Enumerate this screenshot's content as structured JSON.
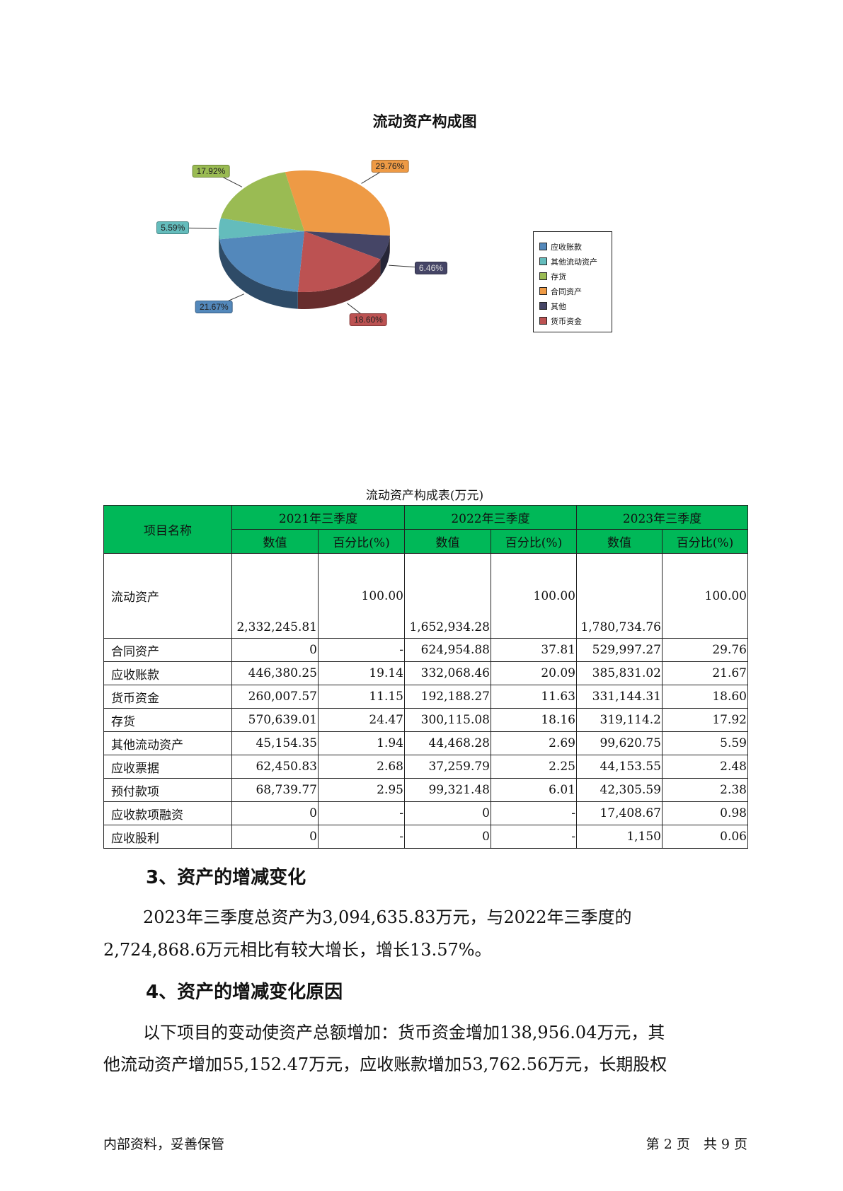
{
  "chart_data": {
    "type": "pie",
    "title": "流动资产构成图",
    "slices": [
      {
        "name": "合同资产",
        "value": 29.76,
        "label": "29.76%",
        "color": "#ee9a45"
      },
      {
        "name": "其他",
        "value": 6.46,
        "label": "6.46%",
        "color": "#454566"
      },
      {
        "name": "货币资金",
        "value": 18.6,
        "label": "18.60%",
        "color": "#bc5252"
      },
      {
        "name": "应收账款",
        "value": 21.67,
        "label": "21.67%",
        "color": "#5388bb"
      },
      {
        "name": "其他流动资产",
        "value": 5.59,
        "label": "5.59%",
        "color": "#64bcbc"
      },
      {
        "name": "存货",
        "value": 17.92,
        "label": "17.92%",
        "color": "#9abb53"
      }
    ],
    "legend": [
      {
        "name": "应收账款",
        "color": "#5388bb"
      },
      {
        "name": "其他流动资产",
        "color": "#64bcbc"
      },
      {
        "name": "存货",
        "color": "#9abb53"
      },
      {
        "name": "合同资产",
        "color": "#ee9a45"
      },
      {
        "name": "其他",
        "color": "#454566"
      },
      {
        "name": "货币资金",
        "color": "#bc5252"
      }
    ],
    "legend_position": "right"
  },
  "table": {
    "caption": "流动资产构成表(万元)",
    "header_name": "项目名称",
    "periods": [
      "2021年三季度",
      "2022年三季度",
      "2023年三季度"
    ],
    "sub": [
      "数值",
      "百分比(%)"
    ],
    "header_color": "#00b858",
    "rows": [
      [
        "流动资产",
        "2,332,245.81",
        "100.00",
        "1,652,934.28",
        "100.00",
        "1,780,734.76",
        "100.00"
      ],
      [
        "合同资产",
        "0",
        "-",
        "624,954.88",
        "37.81",
        "529,997.27",
        "29.76"
      ],
      [
        "应收账款",
        "446,380.25",
        "19.14",
        "332,068.46",
        "20.09",
        "385,831.02",
        "21.67"
      ],
      [
        "货币资金",
        "260,007.57",
        "11.15",
        "192,188.27",
        "11.63",
        "331,144.31",
        "18.60"
      ],
      [
        "存货",
        "570,639.01",
        "24.47",
        "300,115.08",
        "18.16",
        "319,114.2",
        "17.92"
      ],
      [
        "其他流动资产",
        "45,154.35",
        "1.94",
        "44,468.28",
        "2.69",
        "99,620.75",
        "5.59"
      ],
      [
        "应收票据",
        "62,450.83",
        "2.68",
        "37,259.79",
        "2.25",
        "44,153.55",
        "2.48"
      ],
      [
        "预付款项",
        "68,739.77",
        "2.95",
        "99,321.48",
        "6.01",
        "42,305.59",
        "2.38"
      ],
      [
        "应收款项融资",
        "0",
        "-",
        "0",
        "-",
        "17,408.67",
        "0.98"
      ],
      [
        "应收股利",
        "0",
        "-",
        "0",
        "-",
        "1,150",
        "0.06"
      ]
    ]
  },
  "section3": {
    "heading": "3、资产的增减变化",
    "line1": "2023年三季度总资产为3,094,635.83万元，与2022年三季度的",
    "line2": "2,724,868.6万元相比有较大增长，增长13.57%。"
  },
  "section4": {
    "heading": "4、资产的增减变化原因",
    "line1": "以下项目的变动使资产总额增加：货币资金增加138,956.04万元，其",
    "line2": "他流动资产增加55,152.47万元，应收账款增加53,762.56万元，长期股权"
  },
  "footer": {
    "left": "内部资料，妥善保管",
    "right": "第 2 页　共 9 页"
  }
}
